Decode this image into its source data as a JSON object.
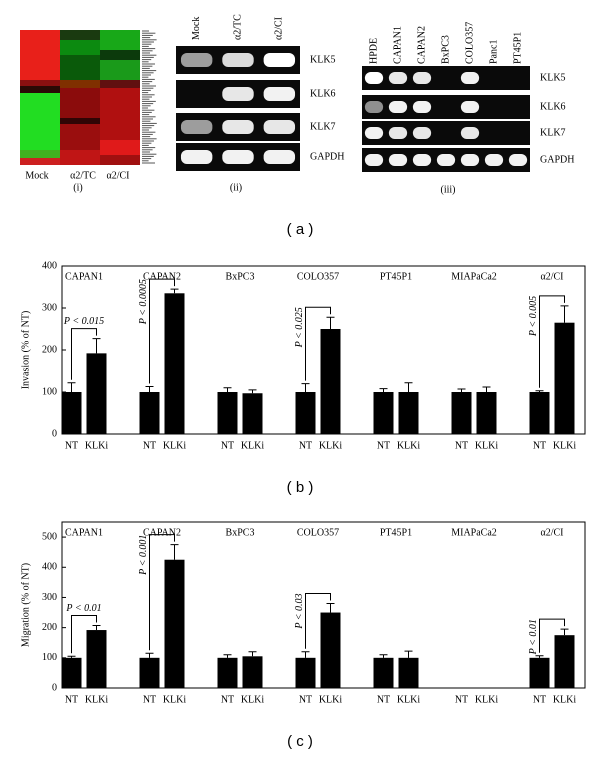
{
  "panel_a": {
    "heatmap": {
      "columns": [
        "Mock",
        "α2/TC",
        "α2/CI"
      ],
      "label": "(i)"
    },
    "gel_ii": {
      "columns": [
        "Mock",
        "α2/TC",
        "α2/CI"
      ],
      "rows": [
        "KLK5",
        "KLK6",
        "KLK7",
        "GAPDH"
      ],
      "label": "(ii)"
    },
    "gel_iii": {
      "columns": [
        "HPDE",
        "CAPAN1",
        "CAPAN2",
        "BxPC3",
        "COLO357",
        "Panc1",
        "PT45P1"
      ],
      "rows": [
        "KLK5",
        "KLK6",
        "KLK7",
        "GAPDH"
      ],
      "label": "(iii)"
    },
    "caption": "( a )"
  },
  "chart_data": [
    {
      "type": "bar",
      "ylabel": "Invasion (% of NT)",
      "caption": "( b )",
      "categories": [
        "CAPAN1",
        "CAPAN2",
        "BxPC3",
        "COLO357",
        "PT45P1",
        "MIAPaCa2",
        "α2/CI"
      ],
      "series": [
        {
          "name": "NT",
          "color": "#000000",
          "values": [
            100,
            100,
            100,
            100,
            100,
            100,
            100
          ],
          "errors": [
            22,
            13,
            10,
            20,
            8,
            7,
            3
          ]
        },
        {
          "name": "KLKi",
          "color": "#000000",
          "values": [
            192,
            335,
            97,
            250,
            100,
            100,
            265
          ],
          "errors": [
            35,
            10,
            8,
            28,
            22,
            12,
            40
          ]
        }
      ],
      "annotations": [
        "P < 0.015",
        "P < 0.0005",
        null,
        "P < 0.025",
        null,
        null,
        "P < 0.005"
      ],
      "ylim": [
        0,
        400
      ],
      "yticks": [
        0,
        100,
        200,
        300,
        400
      ]
    },
    {
      "type": "bar",
      "ylabel": "Migration (% of NT)",
      "caption": "( c )",
      "categories": [
        "CAPAN1",
        "CAPAN2",
        "BxPC3",
        "COLO357",
        "PT45P1",
        "MIAPaCa2",
        "α2/CI"
      ],
      "series": [
        {
          "name": "NT",
          "color": "#000000",
          "values": [
            100,
            100,
            100,
            100,
            100,
            null,
            100
          ],
          "errors": [
            5,
            15,
            10,
            20,
            10,
            null,
            7
          ]
        },
        {
          "name": "KLKi",
          "color": "#000000",
          "values": [
            192,
            425,
            105,
            250,
            100,
            null,
            175
          ],
          "errors": [
            15,
            50,
            15,
            30,
            22,
            null,
            20
          ]
        }
      ],
      "annotations": [
        "P < 0.01",
        "P < 0.001",
        null,
        "P < 0.03",
        null,
        null,
        "P < 0.01"
      ],
      "ylim": [
        0,
        550
      ],
      "yticks": [
        0,
        100,
        200,
        300,
        400,
        500
      ]
    }
  ]
}
